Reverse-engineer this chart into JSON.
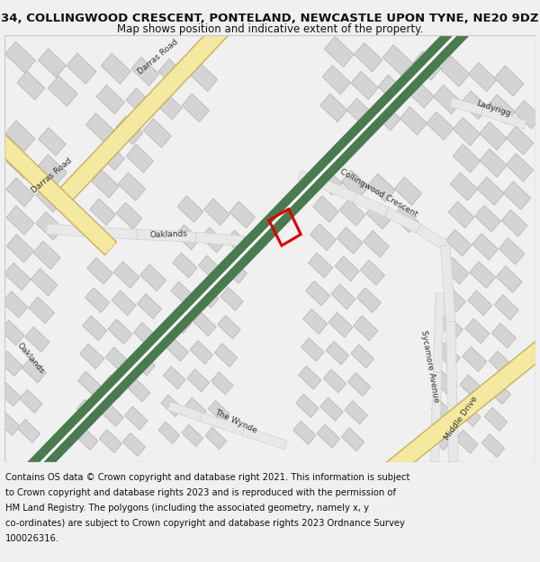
{
  "title": "34, COLLINGWOOD CRESCENT, PONTELAND, NEWCASTLE UPON TYNE, NE20 9DZ",
  "subtitle": "Map shows position and indicative extent of the property.",
  "footer_lines": [
    "Contains OS data © Crown copyright and database right 2021. This information is subject",
    "to Crown copyright and database rights 2023 and is reproduced with the permission of",
    "HM Land Registry. The polygons (including the associated geometry, namely x, y",
    "co-ordinates) are subject to Crown copyright and database rights 2023 Ordnance Survey",
    "100026316."
  ],
  "bg_color": "#f0f0f0",
  "map_bg": "#ffffff",
  "road_green_color": "#4a7a50",
  "road_green_edge": "#ffffff",
  "road_yellow_color": "#f5e8a0",
  "road_yellow_edge": "#c8b060",
  "road_white_color": "#e8e8e8",
  "road_white_edge": "#d0d0d0",
  "building_color": "#d4d4d4",
  "building_edge": "#b8b8b8",
  "marker_color": "#dd0000",
  "title_fontsize": 9.5,
  "subtitle_fontsize": 8.5,
  "footer_fontsize": 7.2,
  "label_fontsize": 6.5,
  "map_border_color": "#cccccc"
}
